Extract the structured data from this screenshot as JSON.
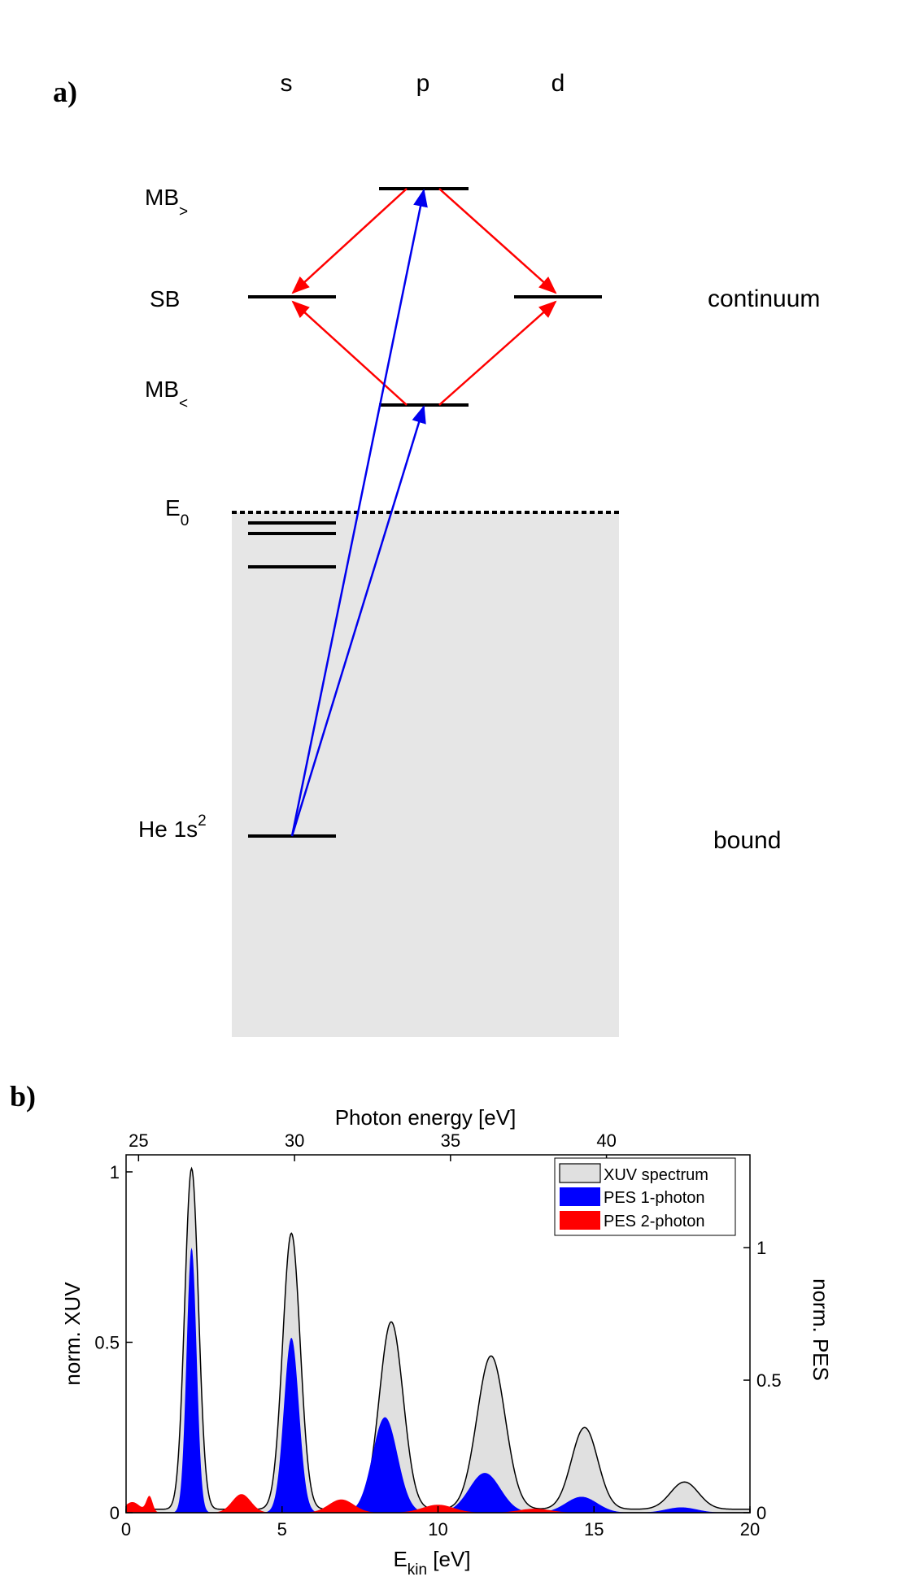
{
  "panel_a": {
    "label": "a)",
    "orbitals": [
      "s",
      "p",
      "d"
    ],
    "levels": {
      "mb_high": {
        "main": "MB",
        "sub": ">"
      },
      "sb": "SB",
      "mb_low": {
        "main": "MB",
        "sub": "<"
      },
      "e0": {
        "main": "E",
        "sub": "0"
      },
      "he": {
        "main": "He 1s",
        "sup": "2"
      }
    },
    "regions": [
      "continuum",
      "bound"
    ],
    "arrow_colors": {
      "xuv": "#0000ee",
      "ir": "#ff0000"
    },
    "bound_region_color": "#e6e6e6"
  },
  "panel_b": {
    "label": "b)",
    "chart_data": {
      "type": "area",
      "top_axis_label": "Photon energy [eV]",
      "top_ticks": [
        "25",
        "30",
        "35",
        "40"
      ],
      "xlabel": {
        "main": "E",
        "sub": "kin",
        "unit": " [eV]"
      },
      "xticks": [
        "0",
        "5",
        "10",
        "15",
        "20"
      ],
      "xlim": [
        0,
        20
      ],
      "ylabel_left": "norm. XUV",
      "yticks_left": [
        "0",
        "0.5",
        "1"
      ],
      "ylim_left": [
        0,
        1.05
      ],
      "ylabel_right": "norm. PES",
      "yticks_right": [
        "0",
        "0.5",
        "1"
      ],
      "ylim_right": [
        0,
        1.35
      ],
      "legend": {
        "position": "top-right",
        "entries": [
          {
            "label": "XUV spectrum",
            "color": "#e0e0e0"
          },
          {
            "label": "PES 1-photon",
            "color": "#0000ff"
          },
          {
            "label": "PES 2-photon",
            "color": "#ff0000"
          }
        ]
      },
      "series": [
        {
          "name": "XUV spectrum",
          "axis": "left",
          "color": "#e0e0e0",
          "peaks": [
            [
              2.1,
              1.0,
              0.22
            ],
            [
              5.3,
              0.81,
              0.28
            ],
            [
              8.5,
              0.55,
              0.38
            ],
            [
              11.7,
              0.45,
              0.45
            ],
            [
              14.7,
              0.24,
              0.42
            ],
            [
              17.9,
              0.08,
              0.45
            ]
          ]
        },
        {
          "name": "PES 1-photon",
          "axis": "right",
          "color": "#0000ff",
          "peaks": [
            [
              2.1,
              1.0,
              0.16
            ],
            [
              5.3,
              0.66,
              0.24
            ],
            [
              8.3,
              0.36,
              0.4
            ],
            [
              11.5,
              0.15,
              0.5
            ],
            [
              14.6,
              0.06,
              0.5
            ],
            [
              17.8,
              0.02,
              0.5
            ]
          ]
        },
        {
          "name": "PES 2-photon",
          "axis": "right",
          "color": "#ff0000",
          "peaks": [
            [
              0.2,
              0.04,
              0.25
            ],
            [
              0.75,
              0.06,
              0.1
            ],
            [
              3.7,
              0.07,
              0.3
            ],
            [
              6.9,
              0.05,
              0.4
            ],
            [
              10.0,
              0.03,
              0.5
            ],
            [
              13.1,
              0.015,
              0.5
            ]
          ]
        }
      ]
    }
  }
}
